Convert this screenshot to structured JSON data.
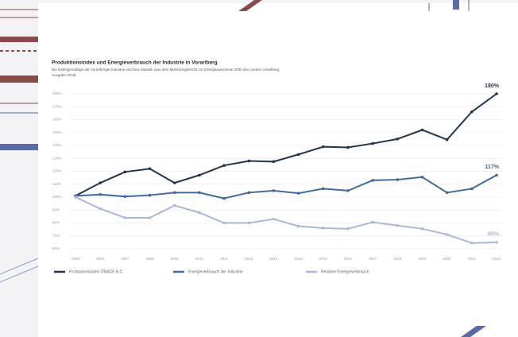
{
  "chart_data": {
    "type": "line",
    "title": "Produktionsindex und Energieverbrauch der Industrie in Vorarlberg",
    "subtitle": "Die Datengrundlage der Vorarlberger Industrie sind laut Statistik (aus dem Monitoringbericht zur Energieautonomie 2030 des Landes Vorarlberg,",
    "subtitle2": "Ausgabe 2019)",
    "categories": [
      "2005",
      "2006",
      "2007",
      "2008",
      "2009",
      "2010",
      "2011",
      "2012",
      "2013",
      "2014",
      "2015",
      "2016",
      "2017",
      "2018",
      "2019",
      "2020",
      "2021",
      "2022"
    ],
    "series": [
      {
        "name": "Produktionsindex ÖNACE B-C",
        "color": "#1f3550",
        "values": [
          101,
          111,
          119.5,
          122,
          111,
          117,
          124.5,
          128,
          127.5,
          133,
          139,
          138.5,
          141.5,
          145,
          152,
          144.5,
          166,
          180
        ],
        "value_labels": [
          null,
          null,
          null,
          null,
          null,
          null,
          null,
          null,
          null,
          null,
          null,
          null,
          null,
          null,
          null,
          null,
          null,
          "180%"
        ]
      },
      {
        "name": "Energieverbrauch der Industrie",
        "color": "#3d6aa0",
        "values": [
          101,
          102,
          100.5,
          101.5,
          103.5,
          103.5,
          99,
          103.5,
          105,
          103,
          106.5,
          105,
          113,
          113.5,
          115.5,
          103.5,
          106.5,
          117
        ],
        "value_labels": [
          null,
          null,
          null,
          null,
          null,
          null,
          null,
          null,
          null,
          null,
          null,
          null,
          null,
          null,
          null,
          null,
          null,
          "117%"
        ]
      },
      {
        "name": "Relativer Energieverbrauch",
        "color": "#a9b8d8",
        "values": [
          100,
          91,
          84,
          84,
          93.5,
          88,
          80,
          80,
          83,
          77.5,
          76,
          75.5,
          80.5,
          78,
          75.5,
          71,
          64.5,
          65
        ],
        "value_labels": [
          null,
          null,
          null,
          null,
          null,
          null,
          null,
          null,
          null,
          null,
          null,
          null,
          null,
          null,
          null,
          null,
          null,
          "65%"
        ]
      }
    ],
    "ylim": [
      60,
      180
    ],
    "yticks": [
      {
        "value": 60,
        "label": "60%"
      },
      {
        "value": 70,
        "label": "70%"
      },
      {
        "value": 80,
        "label": "80%"
      },
      {
        "value": 90,
        "label": "90%"
      },
      {
        "value": 100,
        "label": "100%"
      },
      {
        "value": 110,
        "label": "110%"
      },
      {
        "value": 120,
        "label": "120%"
      },
      {
        "value": 130,
        "label": "130%"
      },
      {
        "value": 140,
        "label": "140%"
      },
      {
        "value": 150,
        "label": "150%"
      },
      {
        "value": 160,
        "label": "160%"
      },
      {
        "value": 170,
        "label": "170%"
      },
      {
        "value": 180,
        "label": "180%"
      }
    ],
    "grid": true,
    "legend": "bottom"
  }
}
